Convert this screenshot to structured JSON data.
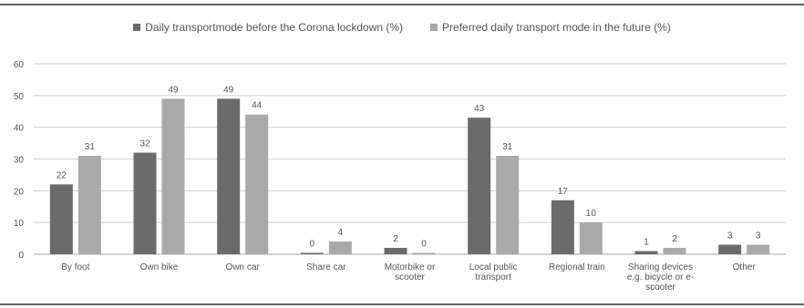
{
  "chart_data": {
    "type": "bar",
    "categories": [
      [
        "By foot"
      ],
      [
        "Own bike"
      ],
      [
        "Own car"
      ],
      [
        "Share car"
      ],
      [
        "Motorbike or",
        "scooter"
      ],
      [
        "Local public",
        "transport"
      ],
      [
        "Regional train"
      ],
      [
        "Sharing devices",
        "e.g. bicycle or e-",
        "scooter"
      ],
      [
        "Other"
      ]
    ],
    "series": [
      {
        "name": "Daily transportmode before the Corona lockdown (%)",
        "values": [
          22,
          32,
          49,
          0,
          2,
          43,
          17,
          1,
          3
        ],
        "color": "#6b6b6b"
      },
      {
        "name": "Preferred daily transport mode in the future (%)",
        "values": [
          31,
          49,
          44,
          4,
          0,
          31,
          10,
          2,
          3
        ],
        "color": "#a9a9a9"
      }
    ],
    "ylim": [
      0,
      60
    ],
    "yticks": [
      0,
      10,
      20,
      30,
      40,
      50,
      60
    ],
    "grid": true,
    "legend_position": "top"
  }
}
